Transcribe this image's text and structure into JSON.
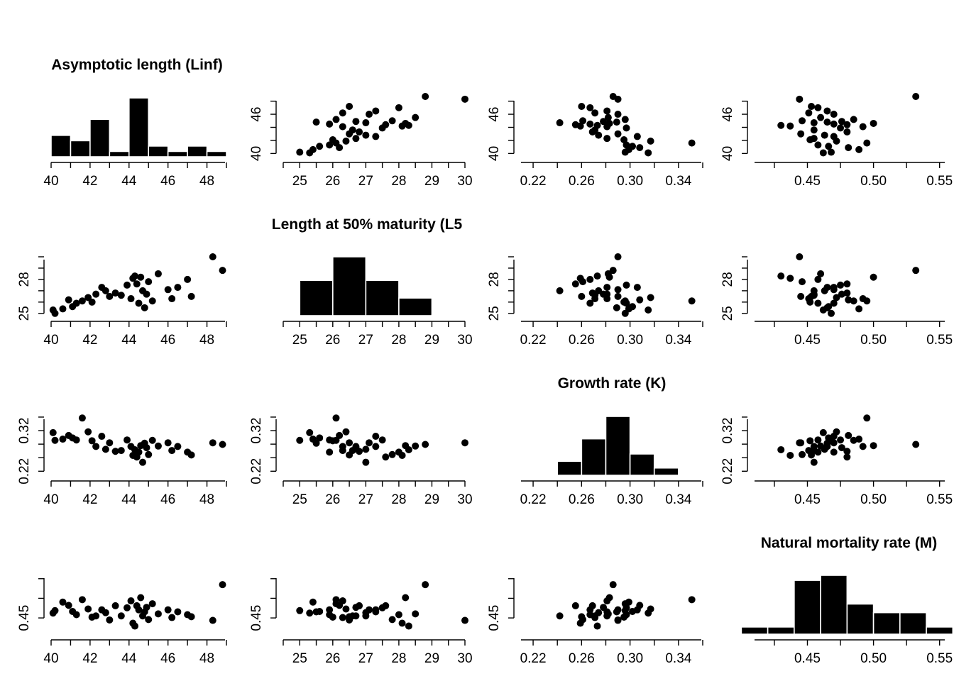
{
  "chart_data": {
    "type": "scatter-matrix",
    "description_vars": [
      "Linf",
      "L50",
      "K",
      "M"
    ],
    "variables": [
      {
        "key": "Linf",
        "title": "Asymptotic length (Linf)",
        "x_ticks": [
          "40",
          "42",
          "44",
          "46",
          "48"
        ],
        "x_tick_values": [
          40,
          42,
          44,
          46,
          48
        ],
        "x_range": [
          40,
          49
        ],
        "y_ticks": [
          "40",
          "46"
        ],
        "y_tick_values": [
          40,
          46
        ],
        "y_range": [
          39.5,
          48.5
        ],
        "hist_breaks": [
          40,
          41,
          42,
          43,
          44,
          45,
          46,
          47,
          48,
          49
        ],
        "hist_counts": [
          4,
          3,
          7,
          1,
          11,
          2,
          1,
          2,
          1
        ]
      },
      {
        "key": "L50",
        "title": "Length at 50% maturity (L5",
        "x_ticks": [
          "25",
          "26",
          "27",
          "28",
          "29",
          "30"
        ],
        "x_tick_values": [
          25,
          26,
          27,
          28,
          29,
          30
        ],
        "x_range": [
          24.5,
          30
        ],
        "y_ticks": [
          "25",
          "28"
        ],
        "y_tick_values": [
          25,
          28
        ],
        "y_range": [
          24.8,
          30
        ],
        "hist_breaks": [
          24.5,
          25,
          26,
          27,
          28,
          29,
          30
        ],
        "hist_counts": [
          0.1,
          6,
          10,
          6,
          3,
          0.1
        ]
      },
      {
        "key": "K",
        "title": "Growth rate (K)",
        "x_ticks": [
          "0.22",
          "0.26",
          "0.30",
          "0.34"
        ],
        "x_tick_values": [
          0.22,
          0.26,
          0.3,
          0.34
        ],
        "x_range": [
          0.21,
          0.36
        ],
        "y_ticks": [
          "0.22",
          "0.32"
        ],
        "y_tick_values": [
          0.22,
          0.32
        ],
        "y_range": [
          0.21,
          0.355
        ],
        "hist_breaks": [
          0.21,
          0.22,
          0.24,
          0.26,
          0.28,
          0.3,
          0.32,
          0.34,
          0.36
        ],
        "hist_counts": [
          0.1,
          0,
          2.5,
          6.5,
          10.5,
          3.8,
          1.3,
          0.1
        ]
      },
      {
        "key": "M",
        "title": "Natural mortality rate (M)",
        "x_ticks": [
          "0.45",
          "0.50",
          "0.55"
        ],
        "x_tick_values": [
          0.45,
          0.5,
          0.55
        ],
        "x_range": [
          0.41,
          0.555
        ],
        "y_ticks": [
          "0.45"
        ],
        "y_tick_values": [
          0.45
        ],
        "y_range": [
          0.41,
          0.555
        ],
        "hist_breaks": [
          0.4,
          0.42,
          0.44,
          0.46,
          0.48,
          0.5,
          0.52,
          0.54,
          0.56
        ],
        "hist_counts": [
          1,
          1,
          7.5,
          8.2,
          4.2,
          3,
          3,
          1
        ]
      }
    ],
    "observations": [
      [
        40.1,
        25.3,
        0.315,
        0.462
      ],
      [
        40.2,
        25.0,
        0.296,
        0.468
      ],
      [
        40.6,
        25.4,
        0.299,
        0.489
      ],
      [
        40.9,
        26.2,
        0.308,
        0.481
      ],
      [
        41.1,
        25.6,
        0.302,
        0.466
      ],
      [
        41.3,
        25.9,
        0.297,
        0.458
      ],
      [
        41.6,
        26.1,
        0.351,
        0.495
      ],
      [
        41.9,
        26.4,
        0.317,
        0.472
      ],
      [
        42.1,
        26.0,
        0.295,
        0.452
      ],
      [
        42.3,
        26.7,
        0.281,
        0.455
      ],
      [
        42.6,
        27.3,
        0.306,
        0.47
      ],
      [
        42.8,
        27.0,
        0.274,
        0.463
      ],
      [
        43.0,
        26.5,
        0.29,
        0.445
      ],
      [
        43.3,
        26.8,
        0.269,
        0.48
      ],
      [
        43.6,
        26.6,
        0.271,
        0.455
      ],
      [
        43.9,
        27.5,
        0.297,
        0.475
      ],
      [
        44.1,
        26.3,
        0.281,
        0.492
      ],
      [
        44.2,
        28.1,
        0.259,
        0.437
      ],
      [
        44.3,
        28.3,
        0.273,
        0.43
      ],
      [
        44.4,
        27.6,
        0.255,
        0.48
      ],
      [
        44.5,
        25.9,
        0.267,
        0.47
      ],
      [
        44.6,
        28.2,
        0.283,
        0.5
      ],
      [
        44.7,
        27.0,
        0.242,
        0.455
      ],
      [
        44.8,
        25.5,
        0.289,
        0.465
      ],
      [
        44.9,
        26.7,
        0.278,
        0.476
      ],
      [
        45.0,
        27.8,
        0.261,
        0.446
      ],
      [
        45.2,
        26.1,
        0.296,
        0.485
      ],
      [
        45.5,
        28.5,
        0.282,
        0.46
      ],
      [
        46.0,
        27.1,
        0.29,
        0.47
      ],
      [
        46.2,
        26.3,
        0.271,
        0.451
      ],
      [
        46.5,
        27.3,
        0.281,
        0.465
      ],
      [
        47.0,
        28.0,
        0.267,
        0.458
      ],
      [
        47.2,
        26.5,
        0.26,
        0.453
      ],
      [
        48.3,
        30.0,
        0.29,
        0.444
      ],
      [
        48.8,
        28.8,
        0.286,
        0.532
      ]
    ]
  }
}
